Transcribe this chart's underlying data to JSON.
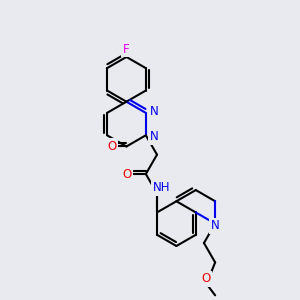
{
  "background_color": "#e8eaf0",
  "bond_color": "#000000",
  "bond_width": 1.5,
  "atom_colors": {
    "C": "#000000",
    "N": "#0000ee",
    "O": "#ee0000",
    "F": "#ee00ee",
    "H": "#008080"
  },
  "font_size": 8.5,
  "figsize": [
    3.0,
    3.0
  ],
  "dpi": 100
}
